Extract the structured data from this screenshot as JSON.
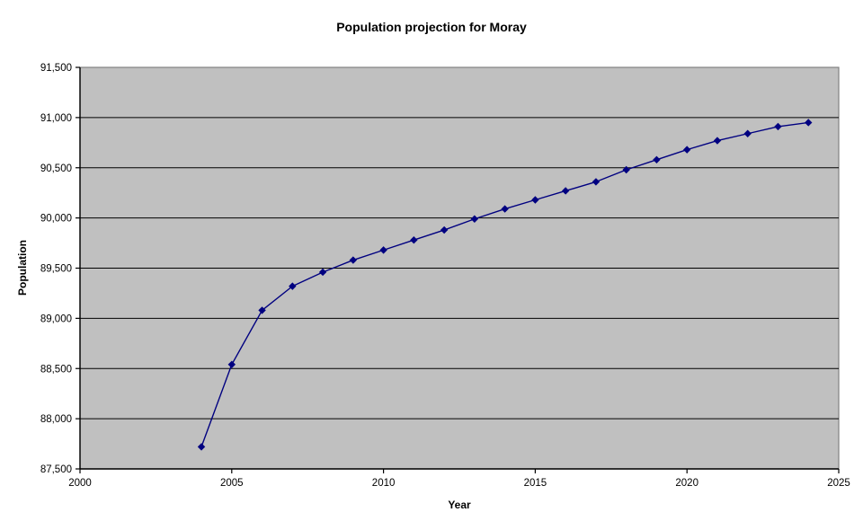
{
  "chart_data": {
    "type": "line",
    "title": "Population projection for Moray",
    "xlabel": "Year",
    "ylabel": "Population",
    "x": [
      2004,
      2005,
      2006,
      2007,
      2008,
      2009,
      2010,
      2011,
      2012,
      2013,
      2014,
      2015,
      2016,
      2017,
      2018,
      2019,
      2020,
      2021,
      2022,
      2023,
      2024
    ],
    "values": [
      87720,
      88540,
      89080,
      89320,
      89460,
      89580,
      89680,
      89780,
      89880,
      89990,
      90090,
      90180,
      90270,
      90360,
      90480,
      90580,
      90680,
      90770,
      90840,
      90910,
      90950
    ],
    "xlim": [
      2000,
      2025
    ],
    "ylim": [
      87500,
      91500
    ],
    "xticks": [
      {
        "value": 2000,
        "label": "2000"
      },
      {
        "value": 2005,
        "label": "2005"
      },
      {
        "value": 2010,
        "label": "2010"
      },
      {
        "value": 2015,
        "label": "2015"
      },
      {
        "value": 2020,
        "label": "2020"
      },
      {
        "value": 2025,
        "label": "2025"
      }
    ],
    "yticks": [
      {
        "value": 87500,
        "label": "87,500"
      },
      {
        "value": 88000,
        "label": "88,000"
      },
      {
        "value": 88500,
        "label": "88,500"
      },
      {
        "value": 89000,
        "label": "89,000"
      },
      {
        "value": 89500,
        "label": "89,500"
      },
      {
        "value": 90000,
        "label": "90,000"
      },
      {
        "value": 90500,
        "label": "90,500"
      },
      {
        "value": 91000,
        "label": "91,000"
      },
      {
        "value": 91500,
        "label": "91,500"
      }
    ],
    "grid": "horizontal",
    "legend": "none",
    "marker": "diamond",
    "colors": {
      "line": "#000080",
      "marker": "#000080",
      "plot_background": "#C0C0C0",
      "gridline": "#000000",
      "axis": "#000000",
      "plot_border": "#808080",
      "text": "#000000",
      "page_background": "#FFFFFF"
    }
  }
}
